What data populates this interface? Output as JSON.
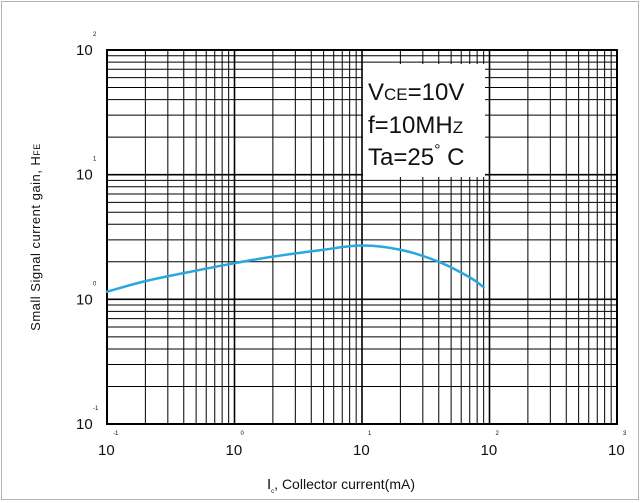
{
  "chart_data": {
    "type": "line",
    "xscale": "log",
    "yscale": "log",
    "xlim": [
      0.1,
      1000
    ],
    "ylim": [
      0.1,
      100
    ],
    "grid": true,
    "xlabel": {
      "main": "I",
      "sub": "c",
      "rest": ",  Collector current(mA)"
    },
    "ylabel": {
      "main": "Small Signal current gain, H",
      "sub": "FE"
    },
    "x_ticks": [
      {
        "base": "10",
        "exp": "-1"
      },
      {
        "base": "10",
        "exp": "0"
      },
      {
        "base": "10",
        "exp": "1"
      },
      {
        "base": "10",
        "exp": "2"
      },
      {
        "base": "10",
        "exp": "3"
      }
    ],
    "y_ticks": [
      {
        "base": "10",
        "exp": "-1"
      },
      {
        "base": "10",
        "exp": "0"
      },
      {
        "base": "10",
        "exp": "1"
      },
      {
        "base": "10",
        "exp": "2"
      }
    ],
    "annotation": [
      {
        "text": "V",
        "sub": "CE",
        "rest": "=10V"
      },
      {
        "text": "f=10MH",
        "sub": "Z",
        "rest": ""
      },
      {
        "text": "Ta=25",
        "sup": "°",
        "rest": " C"
      }
    ],
    "series": [
      {
        "color": "#2aa7dc",
        "x": [
          0.1,
          0.2,
          0.5,
          1,
          2,
          5,
          10,
          20,
          40,
          70,
          90
        ],
        "y": [
          1.15,
          1.4,
          1.7,
          1.95,
          2.2,
          2.5,
          2.7,
          2.5,
          2.0,
          1.5,
          1.25
        ]
      }
    ]
  }
}
